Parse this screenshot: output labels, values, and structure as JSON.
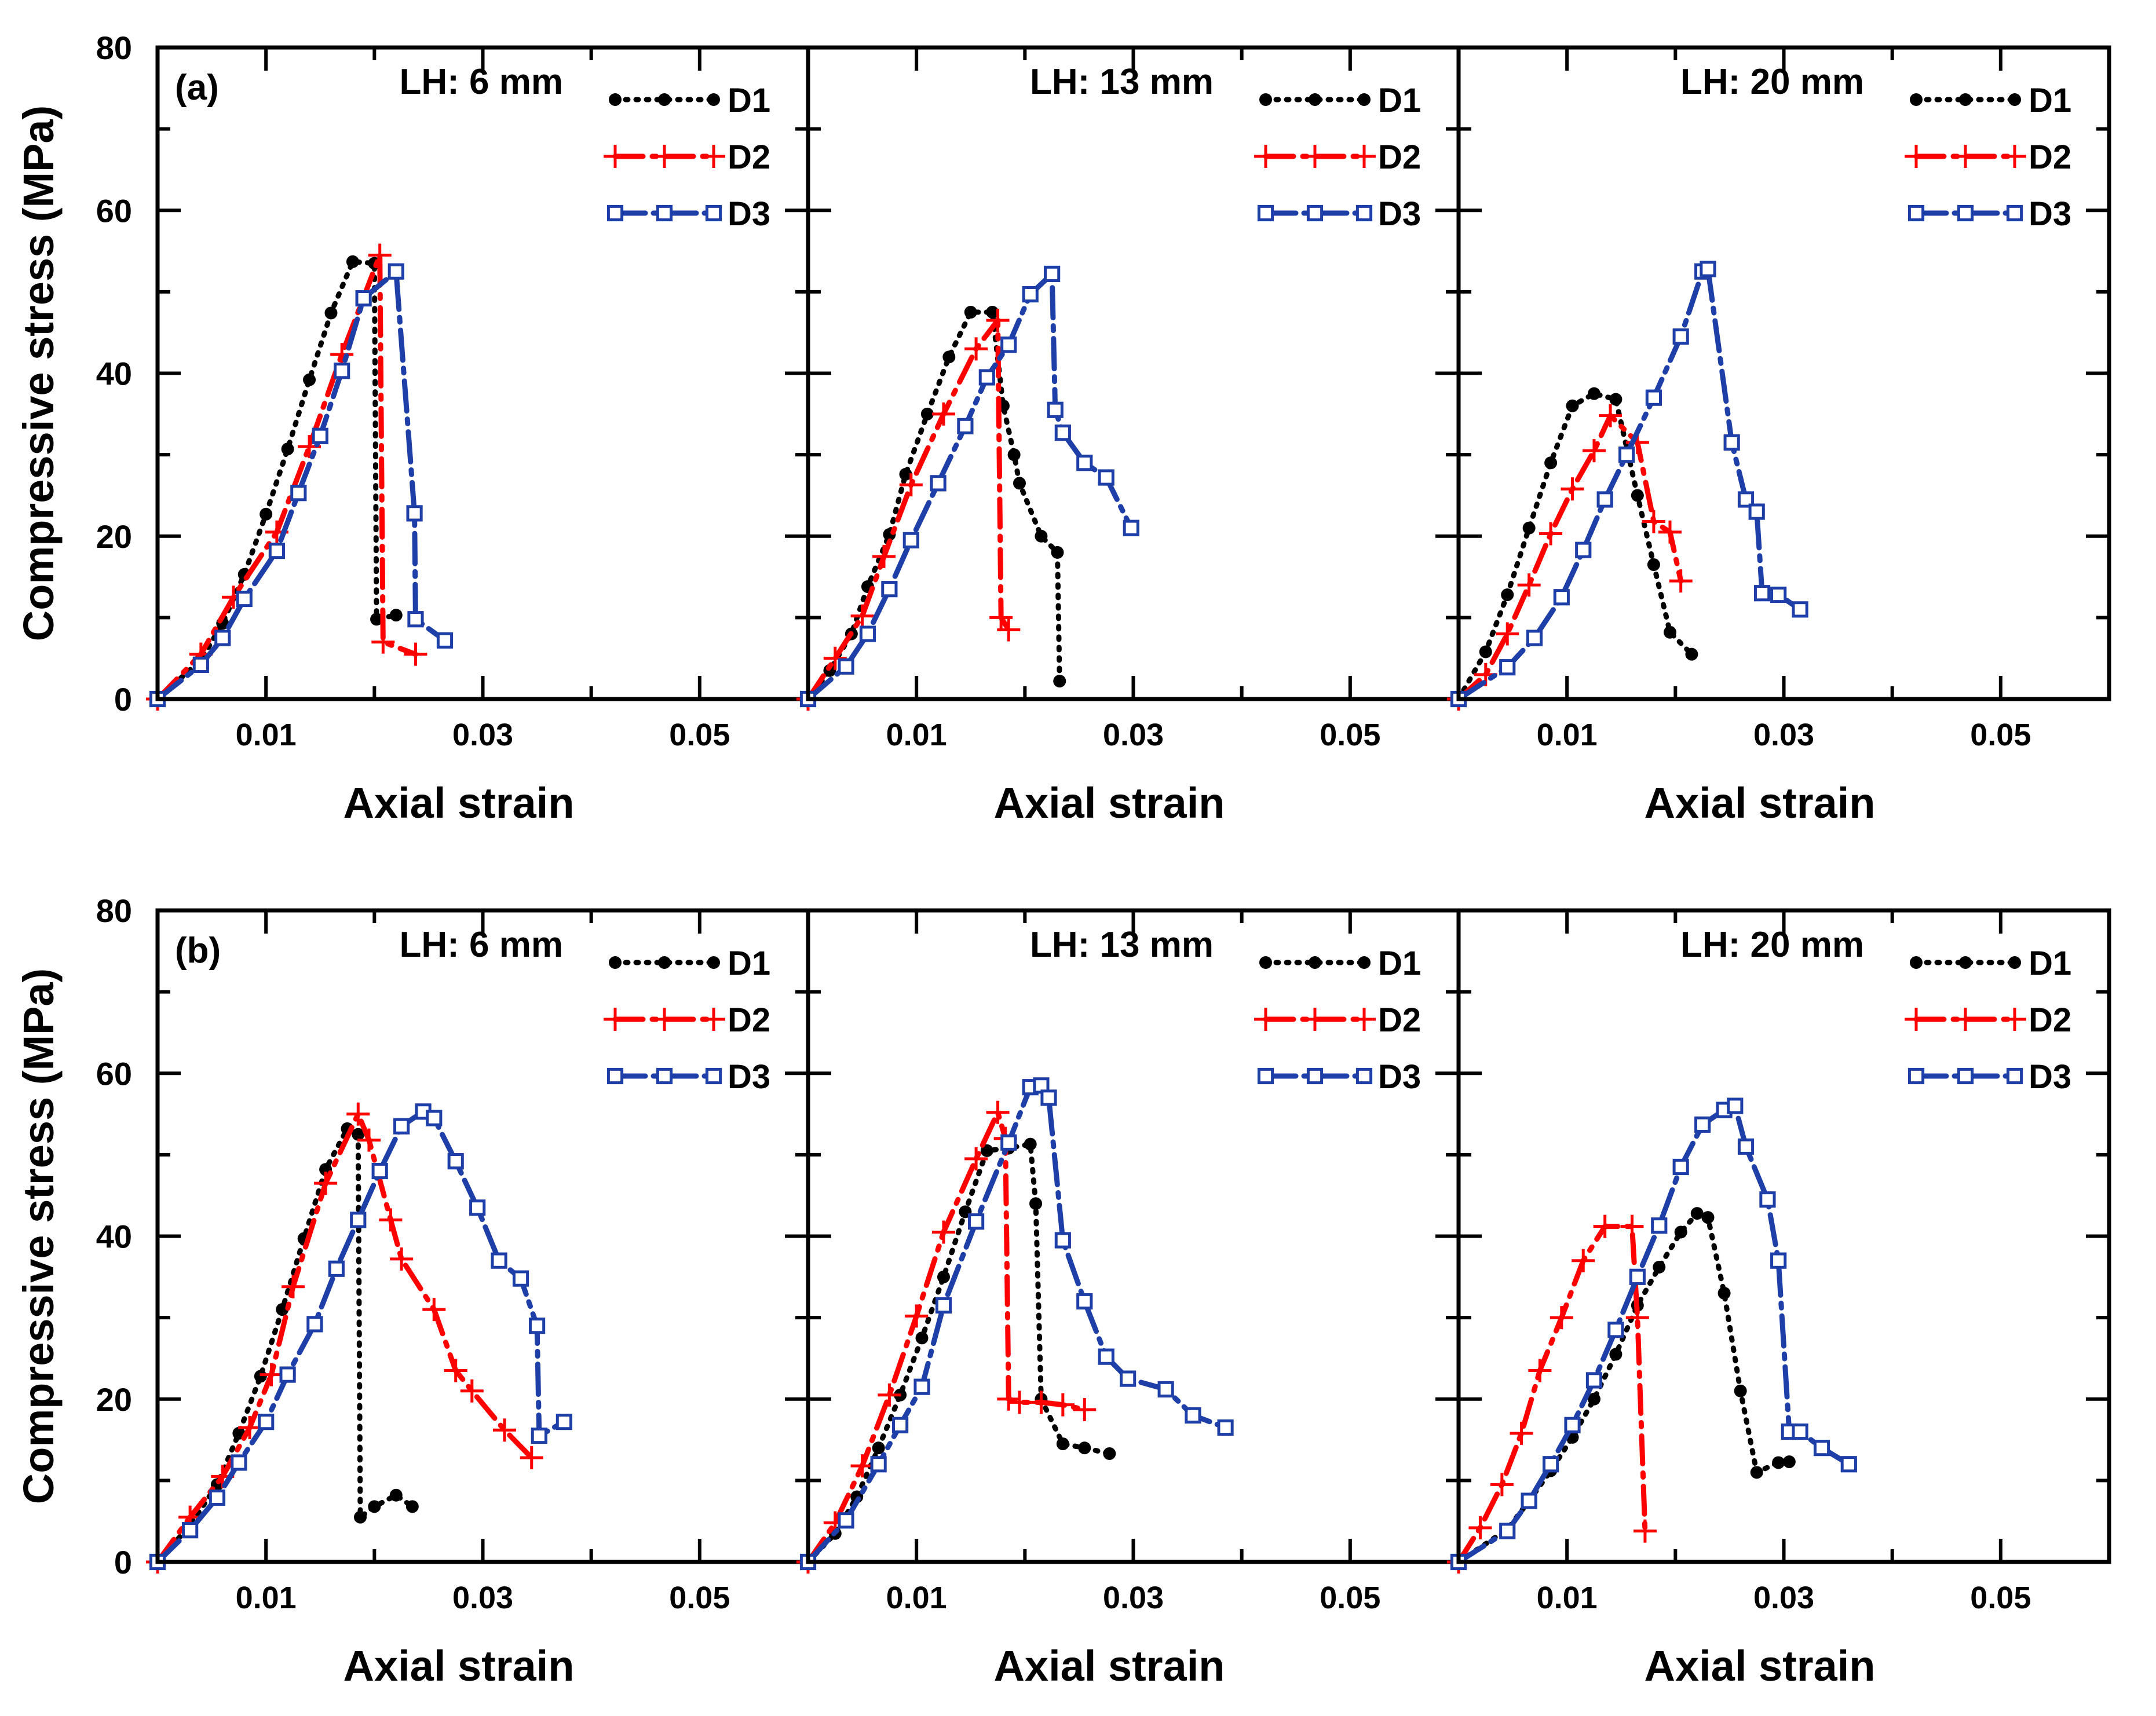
{
  "figure": {
    "ylabel": "Compressive stress (MPa)",
    "xlabel": "Axial strain",
    "xticks": [
      "0.01",
      "0.03",
      "0.05"
    ],
    "yticks": [
      "0",
      "20",
      "40",
      "60",
      "80"
    ],
    "series_styles": [
      {
        "name": "D1",
        "color": "#000000",
        "marker": "filled-circle",
        "line": "dotted"
      },
      {
        "name": "D2",
        "color": "#ff0000",
        "marker": "plus",
        "line": "dash-dot"
      },
      {
        "name": "D3",
        "color": "#1f3fa8",
        "marker": "open-square",
        "line": "dash-dot"
      }
    ]
  },
  "chart_data": [
    {
      "type": "line",
      "row_label": "(a)",
      "title": "LH: 6 mm",
      "xlabel": "Axial strain",
      "ylabel": "Compressive stress (MPa)",
      "xlim": [
        0,
        0.06
      ],
      "ylim": [
        0,
        80
      ],
      "series": [
        {
          "name": "D1",
          "x": [
            0,
            0.004,
            0.006,
            0.008,
            0.01,
            0.012,
            0.014,
            0.016,
            0.018,
            0.02,
            0.0202,
            0.022
          ],
          "y": [
            0,
            4.8,
            9.3,
            15.3,
            22.7,
            30.7,
            39.2,
            47.4,
            53.7,
            53.5,
            9.8,
            10.3
          ]
        },
        {
          "name": "D2",
          "x": [
            0,
            0.004,
            0.007,
            0.011,
            0.014,
            0.017,
            0.0205,
            0.0208,
            0.0238
          ],
          "y": [
            0,
            5.5,
            12.5,
            20.5,
            31,
            42.3,
            54.5,
            7,
            5.5
          ]
        },
        {
          "name": "D3",
          "x": [
            0,
            0.004,
            0.006,
            0.008,
            0.011,
            0.013,
            0.015,
            0.017,
            0.019,
            0.022,
            0.0237,
            0.0238,
            0.0265
          ],
          "y": [
            0,
            4.2,
            7.5,
            12.3,
            18.2,
            25.3,
            32.3,
            40.3,
            49.2,
            52.5,
            22.8,
            9.8,
            7.2
          ]
        }
      ]
    },
    {
      "type": "line",
      "row_label": "",
      "title": "LH: 13 mm",
      "xlabel": "Axial strain",
      "ylabel": "Compressive stress (MPa)",
      "xlim": [
        0,
        0.06
      ],
      "ylim": [
        0,
        80
      ],
      "series": [
        {
          "name": "D1",
          "x": [
            0,
            0.002,
            0.004,
            0.0055,
            0.0075,
            0.009,
            0.011,
            0.013,
            0.015,
            0.017,
            0.018,
            0.019,
            0.0195,
            0.0215,
            0.023,
            0.0232
          ],
          "y": [
            0,
            3.5,
            8,
            13.8,
            20.2,
            27.6,
            35,
            42,
            47.5,
            47.5,
            36,
            30,
            26.5,
            20,
            18,
            2.2
          ]
        },
        {
          "name": "D2",
          "x": [
            0,
            0.0025,
            0.005,
            0.007,
            0.0095,
            0.0125,
            0.0155,
            0.0175,
            0.0178,
            0.0185
          ],
          "y": [
            0,
            5,
            10.2,
            17.5,
            26.3,
            35,
            43,
            46.5,
            10,
            8.5
          ]
        },
        {
          "name": "D3",
          "x": [
            0,
            0.0035,
            0.0055,
            0.0075,
            0.0095,
            0.012,
            0.0145,
            0.0165,
            0.0185,
            0.0205,
            0.0225,
            0.0228,
            0.0235,
            0.0255,
            0.0275,
            0.0298
          ],
          "y": [
            0,
            4,
            8,
            13.5,
            19.5,
            26.5,
            33.5,
            39.5,
            43.5,
            49.7,
            52.2,
            35.5,
            32.7,
            29,
            27.2,
            21
          ]
        }
      ]
    },
    {
      "type": "line",
      "row_label": "",
      "title": "LH: 20 mm",
      "xlabel": "Axial strain",
      "ylabel": "Compressive stress (MPa)",
      "xlim": [
        0,
        0.06
      ],
      "ylim": [
        0,
        80
      ],
      "series": [
        {
          "name": "D1",
          "x": [
            0,
            0.0025,
            0.0045,
            0.0065,
            0.0085,
            0.0105,
            0.0125,
            0.0145,
            0.0165,
            0.018,
            0.0195,
            0.0215
          ],
          "y": [
            0,
            5.8,
            12.8,
            21,
            29,
            36,
            37.5,
            36.8,
            25,
            16.5,
            8.2,
            5.5
          ]
        },
        {
          "name": "D2",
          "x": [
            0,
            0.0025,
            0.0045,
            0.0065,
            0.0085,
            0.0105,
            0.0125,
            0.014,
            0.0165,
            0.018,
            0.0195,
            0.0205
          ],
          "y": [
            0,
            3,
            8,
            14,
            20.3,
            25.8,
            30.5,
            34.8,
            31.5,
            21.8,
            20.5,
            14.5
          ]
        },
        {
          "name": "D3",
          "x": [
            0,
            0.0045,
            0.007,
            0.0095,
            0.0115,
            0.0135,
            0.0155,
            0.018,
            0.0205,
            0.0225,
            0.023,
            0.0252,
            0.0265,
            0.0275,
            0.028,
            0.0295,
            0.0315
          ],
          "y": [
            0,
            3.9,
            7.5,
            12.5,
            18.3,
            24.5,
            30,
            37,
            44.5,
            52.5,
            52.8,
            31.5,
            24.5,
            23,
            13,
            12.8,
            11
          ]
        }
      ]
    },
    {
      "type": "line",
      "row_label": "(b)",
      "title": "LH: 6 mm",
      "xlabel": "Axial strain",
      "ylabel": "Compressive stress (MPa)",
      "xlim": [
        0,
        0.06
      ],
      "ylim": [
        0,
        80
      ],
      "series": [
        {
          "name": "D1",
          "x": [
            0,
            0.003,
            0.0055,
            0.0075,
            0.0095,
            0.0115,
            0.0135,
            0.0155,
            0.0175,
            0.0185,
            0.0187,
            0.02,
            0.022,
            0.0235
          ],
          "y": [
            0,
            4.5,
            9.5,
            15.8,
            22.8,
            31,
            39.7,
            48.2,
            53.2,
            52.5,
            5.5,
            6.8,
            8.2,
            6.8
          ]
        },
        {
          "name": "D2",
          "x": [
            0,
            0.003,
            0.006,
            0.0085,
            0.0105,
            0.0125,
            0.0155,
            0.0185,
            0.0195,
            0.0215,
            0.0225,
            0.0255,
            0.0275,
            0.029,
            0.032,
            0.0345
          ],
          "y": [
            0,
            5.5,
            10.5,
            16.5,
            23,
            33.8,
            46.5,
            55,
            51.8,
            42,
            37.2,
            31,
            23.5,
            21,
            16.2,
            12.8
          ]
        },
        {
          "name": "D3",
          "x": [
            0,
            0.003,
            0.0055,
            0.0075,
            0.01,
            0.012,
            0.0145,
            0.0165,
            0.0185,
            0.0205,
            0.0225,
            0.0245,
            0.0255,
            0.0275,
            0.0295,
            0.0315,
            0.0335,
            0.035,
            0.0352,
            0.0375
          ],
          "y": [
            0,
            3.9,
            7.9,
            12.2,
            17.2,
            23,
            29.2,
            36,
            42,
            48,
            53.5,
            55.3,
            54.5,
            49.2,
            43.5,
            37,
            34.8,
            29,
            15.5,
            17.2
          ]
        }
      ]
    },
    {
      "type": "line",
      "row_label": "",
      "title": "LH: 13 mm",
      "xlabel": "Axial strain",
      "ylabel": "Compressive stress (MPa)",
      "xlim": [
        0,
        0.06
      ],
      "ylim": [
        0,
        80
      ],
      "series": [
        {
          "name": "D1",
          "x": [
            0,
            0.0025,
            0.0045,
            0.0065,
            0.0085,
            0.0105,
            0.0125,
            0.0145,
            0.0165,
            0.0185,
            0.0205,
            0.021,
            0.0215,
            0.0235,
            0.0255,
            0.0278
          ],
          "y": [
            0,
            3.5,
            8,
            14,
            20.5,
            27.5,
            35,
            43,
            50.5,
            50.8,
            51.3,
            44,
            20,
            14.5,
            14,
            13.3
          ]
        },
        {
          "name": "D2",
          "x": [
            0,
            0.0025,
            0.005,
            0.0075,
            0.01,
            0.0125,
            0.0155,
            0.0175,
            0.0182,
            0.0185,
            0.0195,
            0.0215,
            0.0235,
            0.0255
          ],
          "y": [
            0,
            4.8,
            11.8,
            20.5,
            30.2,
            40.5,
            49.5,
            55.2,
            52,
            20,
            19.6,
            19.6,
            19.3,
            18.7
          ]
        },
        {
          "name": "D3",
          "x": [
            0,
            0.0035,
            0.0065,
            0.0085,
            0.0105,
            0.0125,
            0.0155,
            0.0185,
            0.0205,
            0.0215,
            0.0222,
            0.0235,
            0.0255,
            0.0275,
            0.0295,
            0.033,
            0.0355,
            0.0385
          ],
          "y": [
            0,
            5.1,
            12,
            16.8,
            21.5,
            31.5,
            41.8,
            51.5,
            58.3,
            58.5,
            57,
            39.5,
            32,
            25.2,
            22.5,
            21.2,
            18,
            16.5
          ]
        }
      ]
    },
    {
      "type": "line",
      "row_label": "",
      "title": "LH: 20 mm",
      "xlabel": "Axial strain",
      "ylabel": "Compressive stress (MPa)",
      "xlim": [
        0,
        0.06
      ],
      "ylim": [
        0,
        80
      ],
      "series": [
        {
          "name": "D1",
          "x": [
            0,
            0.0045,
            0.0065,
            0.0085,
            0.0105,
            0.0125,
            0.0145,
            0.0165,
            0.0185,
            0.0205,
            0.022,
            0.023,
            0.0245,
            0.026,
            0.0275,
            0.0295,
            0.0305
          ],
          "y": [
            0,
            4,
            7.5,
            11.2,
            15.3,
            20,
            25.5,
            31.5,
            36.2,
            40.5,
            42.8,
            42.3,
            33,
            21,
            11,
            12.2,
            12.3
          ]
        },
        {
          "name": "D2",
          "x": [
            0,
            0.002,
            0.004,
            0.0058,
            0.0075,
            0.0095,
            0.0115,
            0.0135,
            0.016,
            0.0165,
            0.0172
          ],
          "y": [
            0,
            4.2,
            9.5,
            15.8,
            23.5,
            30,
            37,
            41.2,
            41.2,
            30,
            3.8
          ]
        },
        {
          "name": "D3",
          "x": [
            0,
            0.0045,
            0.0065,
            0.0085,
            0.0105,
            0.0125,
            0.0145,
            0.0165,
            0.0185,
            0.0205,
            0.0225,
            0.0245,
            0.0255,
            0.0265,
            0.0285,
            0.0295,
            0.0305,
            0.0315,
            0.0335,
            0.036
          ],
          "y": [
            0,
            3.8,
            7.5,
            12,
            16.8,
            22.3,
            28.5,
            35,
            41.3,
            48.5,
            53.7,
            55.5,
            56,
            51,
            44.5,
            37,
            16,
            16,
            14,
            12
          ]
        }
      ]
    }
  ]
}
